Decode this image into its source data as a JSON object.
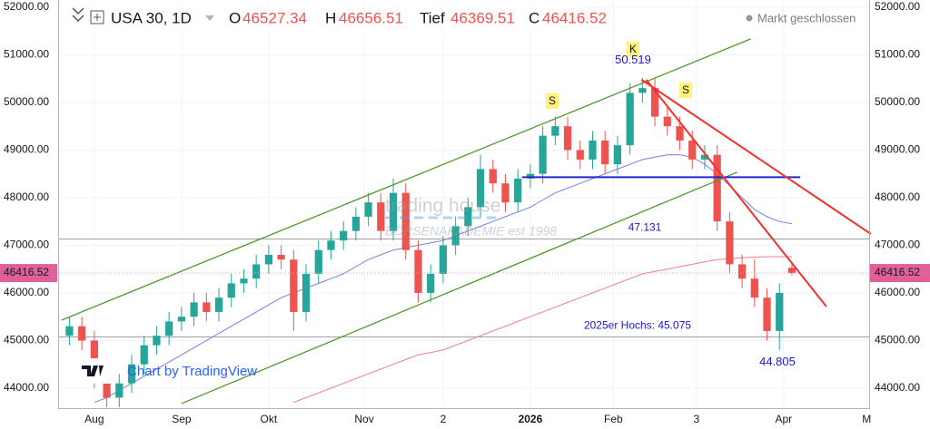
{
  "chart_data": {
    "type": "candlestick",
    "title": "USA 30, 1D",
    "ohlc_labels": [
      "O",
      "H",
      "Tief",
      "C"
    ],
    "status": "Markt geschlossen",
    "watermarks": [
      "Chart by TradingView",
      "trading house",
      "BÖRSENAKADEMIE est 1998"
    ],
    "up_color": "#26a69a",
    "down_color": "#ef5350",
    "candles": {
      "x": [
        -6,
        -3,
        0,
        3,
        6,
        9,
        12,
        15,
        18,
        21,
        24,
        27,
        30,
        33,
        36,
        39,
        42,
        45,
        48,
        51,
        54,
        57,
        60,
        63,
        66,
        69,
        72,
        75,
        78,
        81,
        84,
        87,
        90,
        93,
        96,
        99,
        102,
        105,
        108,
        111,
        114,
        117,
        120,
        123,
        126,
        129,
        132,
        135,
        138,
        141,
        144,
        147,
        150,
        153,
        156,
        159,
        162,
        165,
        168
      ],
      "open": [
        45100,
        45300,
        45000,
        44200,
        43800,
        44100,
        44500,
        44900,
        45100,
        45400,
        45500,
        45800,
        45600,
        45900,
        46200,
        46300,
        46600,
        46800,
        46700,
        45600,
        46400,
        46900,
        47100,
        47300,
        47600,
        47900,
        47300,
        48100,
        46900,
        46000,
        46400,
        47000,
        47400,
        47800,
        48600,
        48300,
        47900,
        48400,
        48500,
        49300,
        49500,
        49000,
        48800,
        49200,
        48700,
        49100,
        50200,
        50300,
        49700,
        49500,
        49200,
        48800,
        48900,
        47500,
        46600,
        46300,
        45900,
        45200,
        46527.34
      ],
      "high": [
        45500,
        45500,
        45200,
        44400,
        44300,
        44700,
        45100,
        45300,
        45600,
        45700,
        46000,
        46000,
        46100,
        46400,
        46500,
        46800,
        47000,
        47000,
        46900,
        46600,
        47100,
        47300,
        47500,
        47800,
        48100,
        48100,
        48400,
        48300,
        47100,
        46600,
        47200,
        47600,
        48000,
        48900,
        48800,
        48500,
        48600,
        48700,
        49500,
        49700,
        49700,
        49200,
        49400,
        49400,
        49300,
        50400,
        50519,
        50500,
        49900,
        49700,
        49400,
        49100,
        49100,
        47700,
        46800,
        46700,
        46100,
        46200,
        46656.51
      ],
      "low": [
        44900,
        44800,
        44000,
        43600,
        43600,
        43900,
        44300,
        44700,
        44900,
        45200,
        45300,
        45400,
        45400,
        45700,
        46000,
        46100,
        46400,
        46500,
        45200,
        45400,
        46200,
        46700,
        46900,
        47100,
        47400,
        47100,
        47100,
        46700,
        45800,
        45800,
        46200,
        46800,
        47200,
        47600,
        48100,
        47700,
        47700,
        48200,
        48300,
        49100,
        48800,
        48600,
        48600,
        48500,
        48500,
        48900,
        50000,
        49500,
        49300,
        49000,
        48600,
        48600,
        47300,
        46400,
        46100,
        45700,
        45000,
        44805,
        46369.51
      ],
      "close": [
        45300,
        45000,
        44200,
        43800,
        44100,
        44500,
        44900,
        45100,
        45400,
        45500,
        45800,
        45600,
        45900,
        46200,
        46300,
        46600,
        46800,
        46700,
        45600,
        46400,
        46900,
        47100,
        47300,
        47600,
        47900,
        47300,
        48100,
        46900,
        46000,
        46400,
        47000,
        47400,
        47800,
        48600,
        48300,
        47900,
        48400,
        48500,
        49300,
        49500,
        49000,
        48800,
        49200,
        48700,
        49100,
        50200,
        50300,
        49700,
        49500,
        49200,
        48800,
        48900,
        47500,
        46600,
        46300,
        45900,
        45200,
        46000,
        46416.52
      ]
    },
    "moving_averages": [
      {
        "color": "#7b7fe0",
        "values": [
          null,
          null,
          43700,
          43800,
          43950,
          44100,
          44250,
          44400,
          44550,
          44700,
          44850,
          45000,
          45150,
          45300,
          45450,
          45600,
          45750,
          45900,
          46000,
          46100,
          46200,
          46300,
          46400,
          46550,
          46700,
          46800,
          46900,
          46950,
          47000,
          47050,
          47100,
          47200,
          47300,
          47400,
          47500,
          47600,
          47700,
          47800,
          47950,
          48100,
          48200,
          48300,
          48400,
          48500,
          48600,
          48700,
          48800,
          48850,
          48900,
          48900,
          48850,
          48700,
          48500,
          48250,
          48000,
          47750,
          47600,
          47500,
          47450
        ]
      },
      {
        "color": "#f08080",
        "values": [
          null,
          null,
          null,
          null,
          null,
          null,
          null,
          null,
          null,
          null,
          null,
          null,
          null,
          null,
          null,
          null,
          null,
          null,
          43700,
          43800,
          43900,
          44000,
          44100,
          44200,
          44300,
          44400,
          44500,
          44600,
          44700,
          44750,
          44800,
          44900,
          45000,
          45100,
          45200,
          45300,
          45400,
          45500,
          45600,
          45700,
          45800,
          45900,
          46000,
          46100,
          46200,
          46300,
          46400,
          46450,
          46500,
          46550,
          46600,
          46650,
          46700,
          46720,
          46740,
          46750,
          46760,
          46760,
          46760
        ]
      }
    ],
    "levels": [
      {
        "value": 47131,
        "label": "47.131",
        "color": "#a0a0a0"
      },
      {
        "value": 45075,
        "label": "2025er Hochs: 45.075",
        "color": "#a0a0a0"
      }
    ],
    "trendlines": [
      {
        "color": "#4f9a2c",
        "x": [
          -7.9,
          158.1
        ],
        "y": [
          45428,
          51333
        ]
      },
      {
        "color": "#4f9a2c",
        "x": [
          21,
          154.8
        ],
        "y": [
          43676,
          48533
        ]
      },
      {
        "color": "#2727c8",
        "x": [
          103,
          170
        ],
        "y": [
          48430,
          48430
        ]
      },
      {
        "color": "#f23030",
        "x": [
          131.8,
          187
        ],
        "y": [
          50476,
          47238
        ]
      },
      {
        "color": "#f23030",
        "x": [
          132.9,
          176.3
        ],
        "y": [
          50476,
          45714
        ]
      }
    ],
    "markers": [
      "S",
      "K",
      "S"
    ],
    "extremes": [
      {
        "value": 50519,
        "label": "50.519"
      },
      {
        "value": 44805,
        "label": "44.805"
      }
    ],
    "xlim": [
      -8.5,
      186.6
    ],
    "ylim": [
      43580,
      52150
    ],
    "xticks": [
      {
        "value": 0,
        "label": "Aug"
      },
      {
        "value": 21,
        "label": "Sep"
      },
      {
        "value": 42,
        "label": "Okt"
      },
      {
        "value": 65,
        "label": "Nov"
      },
      {
        "value": 84,
        "label": "2"
      },
      {
        "value": 105,
        "label": "2026"
      },
      {
        "value": 125,
        "label": "Feb"
      },
      {
        "value": 145,
        "label": "3"
      },
      {
        "value": 166,
        "label": "Apr"
      },
      {
        "value": 186,
        "label": "M"
      }
    ],
    "yticks": [
      {
        "value": 44000,
        "label": "44000.00"
      },
      {
        "value": 45000,
        "label": "45000.00"
      },
      {
        "value": 46000,
        "label": "46000.00"
      },
      {
        "value": 47000,
        "label": "47000.00"
      },
      {
        "value": 48000,
        "label": "48000.00"
      },
      {
        "value": 49000,
        "label": "49000.00"
      },
      {
        "value": 50000,
        "label": "50000.00"
      },
      {
        "value": 51000,
        "label": "51000.00"
      },
      {
        "value": 52000,
        "label": "52000.00"
      }
    ]
  }
}
